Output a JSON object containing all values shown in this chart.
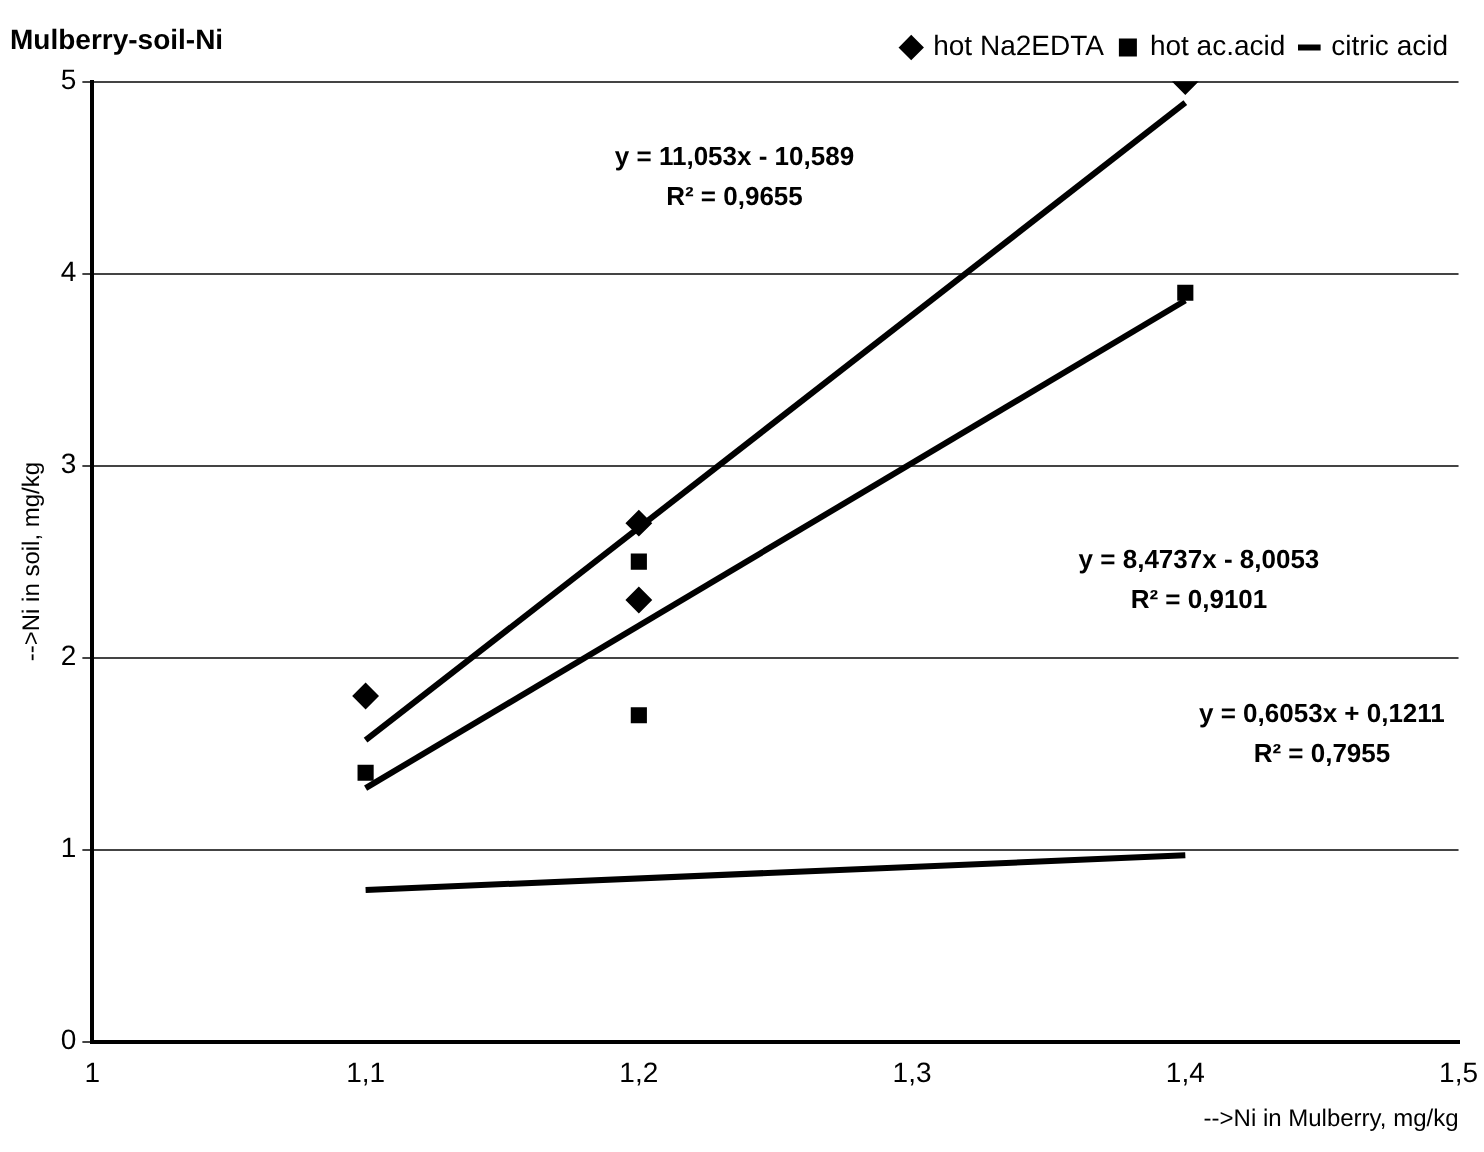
{
  "chart_data": {
    "type": "scatter",
    "title": "Mulberry-soil-Ni",
    "xlabel": "-->Ni in Mulberry, mg/kg",
    "ylabel": "-->Ni in soil, mg/kg",
    "xlim": [
      1,
      1.5
    ],
    "xticks": [
      1,
      {
        "value": 1.1,
        "label": "1,1"
      },
      {
        "value": 1.2,
        "label": "1,2"
      },
      {
        "value": 1.3,
        "label": "1,3"
      },
      {
        "value": 1.4,
        "label": "1,4"
      },
      {
        "value": 1.5,
        "label": "1,5"
      }
    ],
    "ylim": [
      0,
      5
    ],
    "yticks": [
      0,
      1,
      2,
      3,
      4,
      5
    ],
    "grid": "y",
    "legend": "top right",
    "series": [
      {
        "name": "hot Na2EDTA",
        "color": "#000000",
        "marker": "diamond",
        "x": [
          1.1,
          1.2,
          1.2,
          1.4
        ],
        "values": [
          1.8,
          2.7,
          2.3,
          5.0
        ]
      },
      {
        "name": "hot ac.acid",
        "color": "#000000",
        "marker": "square",
        "x": [
          1.1,
          1.2,
          1.2,
          1.4
        ],
        "values": [
          1.4,
          2.5,
          1.7,
          3.9
        ]
      },
      {
        "type": "line",
        "color": "#000000",
        "marker": "none",
        "x": [
          1.1,
          1.4
        ],
        "values": [
          1.57,
          4.89
        ]
      },
      {
        "type": "line",
        "color": "#000000",
        "marker": "none",
        "x": [
          1.1,
          1.4
        ],
        "values": [
          1.32,
          3.86
        ]
      },
      {
        "name": "citric acid",
        "type": "line",
        "color": "#000000",
        "marker": "none",
        "x": [
          1.1,
          1.4
        ],
        "values": [
          0.79,
          0.97
        ]
      }
    ],
    "annotations": [
      "y = 11,053x - 10,589\nR² = 0,9655",
      "y = 8,4737x - 8,0053\nR² = 0,9101",
      "y = 0,6053x + 0,1211\nR² = 0,7955"
    ]
  }
}
